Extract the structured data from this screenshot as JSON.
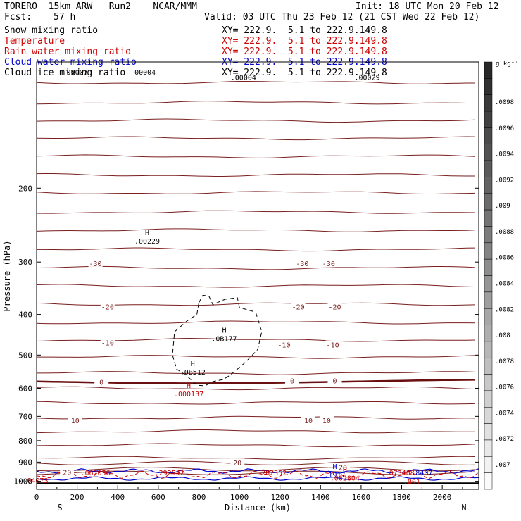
{
  "header": {
    "model": "TORERO  15km ARW   Run2    NCAR/MMM",
    "init": "Init: 18 UTC Mon 20 Feb 12",
    "fcst_label": "Fcst:",
    "fcst_value": "57 h",
    "valid": "Valid: 03 UTC Thu 23 Feb 12 (21 CST Wed 22 Feb 12)"
  },
  "fields": [
    {
      "name": "Snow mixing ratio",
      "color": "#000000",
      "xy": "XY= 222.9.  5.1 to 222.9.149.8"
    },
    {
      "name": "Temperature",
      "color": "#cc0000",
      "xy": "XY= 222.9.  5.1 to 222.9.149.8"
    },
    {
      "name": "Rain water mixing ratio",
      "color": "#cc0000",
      "xy": "XY= 222.9.  5.1 to 222.9.149.8"
    },
    {
      "name": "Cloud water mixing ratio",
      "color": "#0000cc",
      "xy": "XY= 222.9.  5.1 to 222.9.149.8"
    },
    {
      "name": "Cloud ice mixing ratio",
      "color": "#000000",
      "xy": "XY= 222.9.  5.1 to 222.9.149.8"
    }
  ],
  "chart_data": {
    "type": "contour-cross-section",
    "xlabel": "Distance (km)",
    "ylabel": "Pressure (hPa)",
    "x_ticks": [
      0,
      200,
      400,
      600,
      800,
      1000,
      1200,
      1400,
      1600,
      1800,
      2000
    ],
    "xlim": [
      0,
      2180
    ],
    "y_ticks": [
      200,
      300,
      400,
      500,
      600,
      700,
      800,
      900,
      1000
    ],
    "ylim": [
      100,
      1045
    ],
    "y_scale": "log",
    "end_labels": {
      "left": "S",
      "right": "N"
    },
    "colorbar": {
      "unit": "g kg⁻¹",
      "labels": [
        ".0098",
        ".0096",
        ".0094",
        ".0092",
        ".009",
        ".0088",
        ".0086",
        ".0084",
        ".0082",
        ".008",
        ".0078",
        ".0076",
        ".0074",
        ".0072",
        ".007"
      ]
    },
    "temperature_contour_labels": [
      {
        "text": "-30",
        "x": 290,
        "p": 302
      },
      {
        "text": "-30",
        "x": 1310,
        "p": 302
      },
      {
        "text": "-30",
        "x": 1440,
        "p": 302
      },
      {
        "text": "-20",
        "x": 350,
        "p": 383
      },
      {
        "text": "-20",
        "x": 1290,
        "p": 383
      },
      {
        "text": "-20",
        "x": 1470,
        "p": 383
      },
      {
        "text": "-10",
        "x": 350,
        "p": 467
      },
      {
        "text": "-10",
        "x": 1220,
        "p": 472
      },
      {
        "text": "-10",
        "x": 1460,
        "p": 472
      },
      {
        "text": "0",
        "x": 320,
        "p": 580
      },
      {
        "text": "0",
        "x": 1260,
        "p": 575
      },
      {
        "text": "0",
        "x": 1470,
        "p": 575
      },
      {
        "text": "10",
        "x": 190,
        "p": 715
      },
      {
        "text": "10",
        "x": 1340,
        "p": 715
      },
      {
        "text": "10",
        "x": 1430,
        "p": 715
      },
      {
        "text": "20",
        "x": 990,
        "p": 903
      },
      {
        "text": "20",
        "x": 1510,
        "p": 925
      },
      {
        "text": "20",
        "x": 150,
        "p": 950
      }
    ],
    "extrema_labels": [
      {
        "mark": "H",
        "text": ".00229",
        "x": 545,
        "p": 268,
        "color": "#000000"
      },
      {
        "mark": "H",
        "text": ".0B177",
        "x": 925,
        "p": 458,
        "color": "#000000"
      },
      {
        "mark": "H",
        "text": ".0B512",
        "x": 770,
        "p": 550,
        "color": "#000000"
      },
      {
        "mark": "H",
        "text": ".000137",
        "x": 750,
        "p": 620,
        "color": "#cc0000"
      },
      {
        "mark": "",
        "text": ".062056",
        "x": 290,
        "p": 957,
        "color": "#cc0000"
      },
      {
        "mark": "",
        "text": ".292542",
        "x": 655,
        "p": 957,
        "color": "#cc0000"
      },
      {
        "mark": "",
        "text": ".282352",
        "x": 1160,
        "p": 957,
        "color": "#cc0000"
      },
      {
        "mark": "H",
        "text": ".1917",
        "x": 1470,
        "p": 967,
        "color": "#0000cc"
      },
      {
        "mark": "H",
        "text": ".062804",
        "x": 1520,
        "p": 985,
        "color": "#cc0000"
      },
      {
        "mark": "",
        "text": ".073468",
        "x": 1790,
        "p": 957,
        "color": "#cc0000"
      },
      {
        "mark": "",
        "text": ".8407",
        "x": 1900,
        "p": 957,
        "color": "#0000cc"
      },
      {
        "mark": "",
        "text": ".001",
        "x": 1850,
        "p": 1003,
        "color": "#cc0000"
      },
      {
        "mark": "",
        "text": "04073",
        "x": 5,
        "p": 997,
        "color": "#cc0000"
      },
      {
        "mark": "",
        "text": "00007",
        "x": 200,
        "p": 106,
        "color": "#000000"
      },
      {
        "mark": "",
        "text": "00004",
        "x": 535,
        "p": 106,
        "color": "#000000"
      },
      {
        "mark": "",
        "text": ".00004",
        "x": 1020,
        "p": 109,
        "color": "#000000"
      },
      {
        "mark": "",
        "text": ".00029",
        "x": 1630,
        "p": 109,
        "color": "#000000"
      }
    ],
    "freezing_level_p": 578,
    "surface_p": 1010
  }
}
